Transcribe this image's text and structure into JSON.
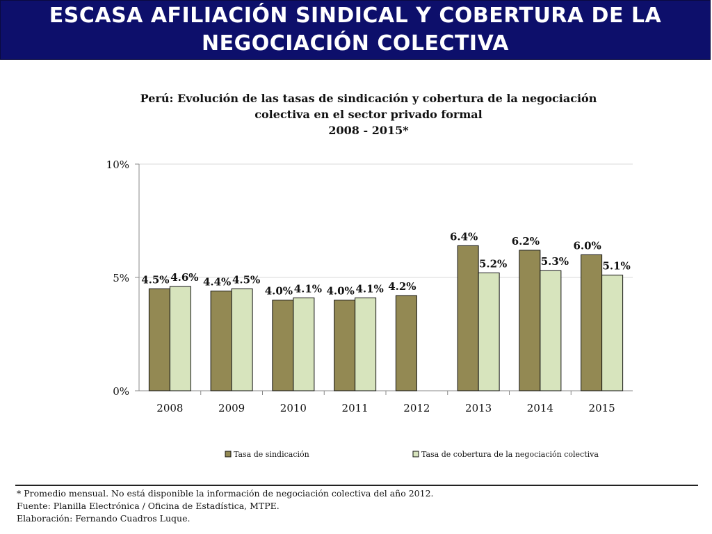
{
  "banner": {
    "title": "ESCASA AFILIACIÓN SINDICAL Y COBERTURA DE LA\nNEGOCIACIÓN COLECTIVA"
  },
  "chart_data": {
    "type": "bar",
    "title_lines": [
      "Perú: Evolución de las tasas de sindicación y cobertura de la negociación",
      "colectiva en el sector privado formal",
      "2008 - 2015*"
    ],
    "categories": [
      "2008",
      "2009",
      "2010",
      "2011",
      "2012",
      "2013",
      "2014",
      "2015"
    ],
    "series": [
      {
        "name": "Tasa de sindicación",
        "values": [
          4.5,
          4.4,
          4.0,
          4.0,
          4.2,
          6.4,
          6.2,
          6.0
        ],
        "labels": [
          "4.5%",
          "4.4%",
          "4.0%",
          "4.0%",
          "4.2%",
          "6.4%",
          "6.2%",
          "6.0%"
        ],
        "color": "#938953"
      },
      {
        "name": "Tasa de cobertura de la negociación colectiva",
        "values": [
          4.6,
          4.5,
          4.1,
          4.1,
          null,
          5.2,
          5.3,
          5.1
        ],
        "labels": [
          "4.6%",
          "4.5%",
          "4.1%",
          "4.1%",
          null,
          "5.2%",
          "5.3%",
          "5.1%"
        ],
        "color": "#d7e4bd"
      }
    ],
    "yticks": [
      "0%",
      "5%",
      "10%"
    ],
    "ylim": [
      0,
      10
    ],
    "grid": true,
    "legend": "bottom"
  },
  "footnotes": [
    "* Promedio mensual. No está disponible la información de negociación colectiva del año 2012.",
    "Fuente:  Planilla Electrónica / Oficina de Estadística, MTPE.",
    "Elaboración: Fernando Cuadros Luque."
  ]
}
